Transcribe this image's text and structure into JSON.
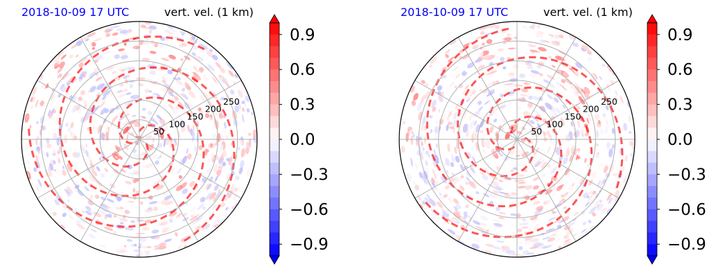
{
  "chart_data": [
    {
      "type": "heatmap",
      "projection": "polar",
      "title_left": "2018-10-09 17 UTC",
      "title_right": "vert. vel. (1 km)",
      "radial_ticks": [
        50,
        100,
        150,
        200,
        250
      ],
      "rmax": 300,
      "grid": true,
      "colorbar": {
        "ticks": [
          0.9,
          0.6,
          0.3,
          0.0,
          -0.3,
          -0.6,
          -0.9
        ],
        "tick_labels": [
          "0.9",
          "0.6",
          "0.3",
          "0.0",
          "−0.3",
          "−0.6",
          "−0.9"
        ],
        "range": [
          -1.0,
          1.0
        ],
        "extend": "both",
        "colors": {
          "min": "#0000ff",
          "mid": "#ffffff",
          "max": "#ff0000"
        }
      }
    },
    {
      "type": "heatmap",
      "projection": "polar",
      "title_left": "2018-10-09 17 UTC",
      "title_right": "vert. vel. (1 km)",
      "radial_ticks": [
        50,
        100,
        150,
        200,
        250
      ],
      "rmax": 300,
      "grid": true,
      "colorbar": {
        "ticks": [
          0.9,
          0.6,
          0.3,
          0.0,
          -0.3,
          -0.6,
          -0.9
        ],
        "tick_labels": [
          "0.9",
          "0.6",
          "0.3",
          "0.0",
          "−0.3",
          "−0.6",
          "−0.9"
        ],
        "range": [
          -1.0,
          1.0
        ],
        "extend": "both",
        "colors": {
          "min": "#0000ff",
          "mid": "#ffffff",
          "max": "#ff0000"
        }
      }
    }
  ]
}
